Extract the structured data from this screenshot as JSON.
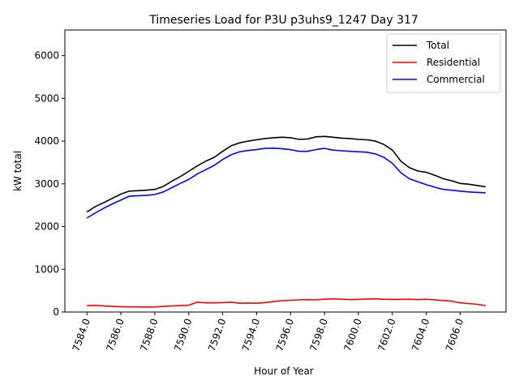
{
  "chart_data": {
    "type": "line",
    "title": "Timeseries Load for P3U p3uhs9_1247  Day 317",
    "xlabel": "Hour of Year",
    "ylabel": "kW total",
    "xlim": [
      7582.7,
      7608.7
    ],
    "ylim": [
      0,
      6600
    ],
    "xticks": [
      7584,
      7586,
      7588,
      7590,
      7592,
      7594,
      7596,
      7598,
      7600,
      7602,
      7604,
      7606
    ],
    "xtick_labels": [
      "7584.0",
      "7586.0",
      "7588.0",
      "7590.0",
      "7592.0",
      "7594.0",
      "7596.0",
      "7598.0",
      "7600.0",
      "7602.0",
      "7604.0",
      "7606.0"
    ],
    "yticks": [
      0,
      1000,
      2000,
      3000,
      4000,
      5000,
      6000
    ],
    "ytick_labels": [
      "0",
      "1000",
      "2000",
      "3000",
      "4000",
      "5000",
      "6000"
    ],
    "grid": false,
    "legend_position": "top-right",
    "x": [
      7584.0,
      7584.5,
      7585.0,
      7585.5,
      7586.0,
      7586.5,
      7587.0,
      7587.5,
      7588.0,
      7588.5,
      7589.0,
      7589.5,
      7590.0,
      7590.5,
      7591.0,
      7591.5,
      7592.0,
      7592.5,
      7593.0,
      7593.5,
      7594.0,
      7594.5,
      7595.0,
      7595.5,
      7596.0,
      7596.5,
      7597.0,
      7597.5,
      7598.0,
      7598.5,
      7599.0,
      7599.5,
      7600.0,
      7600.5,
      7601.0,
      7601.5,
      7602.0,
      7602.5,
      7603.0,
      7603.5,
      7604.0,
      7604.5,
      7605.0,
      7605.5,
      7606.0,
      7606.5,
      7607.0,
      7607.5
    ],
    "series": [
      {
        "name": "Total",
        "color": "#000000",
        "values": [
          2340,
          2470,
          2560,
          2660,
          2760,
          2830,
          2840,
          2850,
          2870,
          2940,
          3060,
          3170,
          3290,
          3420,
          3530,
          3620,
          3760,
          3890,
          3960,
          4000,
          4030,
          4060,
          4080,
          4090,
          4080,
          4040,
          4050,
          4100,
          4110,
          4090,
          4070,
          4060,
          4040,
          4030,
          4000,
          3920,
          3790,
          3530,
          3380,
          3300,
          3270,
          3200,
          3120,
          3070,
          3010,
          2990,
          2960,
          2930
        ]
      },
      {
        "name": "Residential",
        "color": "#ff0000",
        "values": [
          150,
          155,
          140,
          130,
          125,
          120,
          120,
          115,
          120,
          130,
          140,
          150,
          160,
          230,
          215,
          215,
          220,
          230,
          205,
          210,
          205,
          220,
          245,
          265,
          275,
          285,
          290,
          285,
          300,
          310,
          300,
          290,
          295,
          305,
          310,
          300,
          295,
          295,
          300,
          290,
          300,
          285,
          270,
          255,
          215,
          200,
          180,
          150
        ]
      },
      {
        "name": "Commercial",
        "color": "#0000ff",
        "values": [
          2200,
          2320,
          2430,
          2530,
          2620,
          2710,
          2720,
          2730,
          2750,
          2810,
          2910,
          3010,
          3100,
          3230,
          3330,
          3430,
          3570,
          3680,
          3750,
          3780,
          3800,
          3830,
          3835,
          3820,
          3800,
          3760,
          3760,
          3800,
          3830,
          3790,
          3775,
          3760,
          3750,
          3740,
          3700,
          3620,
          3480,
          3260,
          3120,
          3050,
          2980,
          2920,
          2870,
          2850,
          2830,
          2810,
          2800,
          2790
        ]
      }
    ]
  }
}
